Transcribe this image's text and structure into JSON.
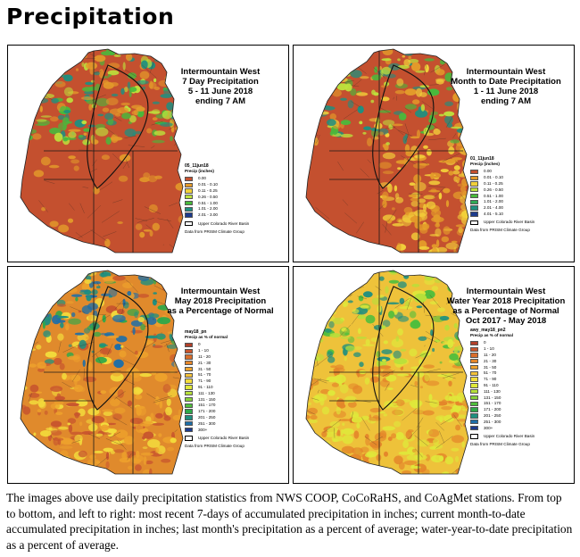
{
  "page": {
    "title": "Precipitation",
    "caption": "The images above use daily precipitation statistics from NWS COOP, CoCoRaHS, and CoAgMet stations. From top to bottom, and left to right: most recent 7-days of accumulated precipitation in inches; current month-to-date accumulated precipitation in inches; last month's precipitation as a percent of average; water-year-to-date precipitation as a percent of average."
  },
  "panels": [
    {
      "title_lines": [
        "Intermountain West",
        "7 Day Precipitation",
        "5 - 11 June 2018",
        "ending 7 AM"
      ],
      "legend": {
        "heading": "05_11jun18",
        "subheading": "Precip (inches)",
        "items": [
          {
            "label": "0.00",
            "color": "#c4502f"
          },
          {
            "label": "0.01 - 0.10",
            "color": "#e39a2a"
          },
          {
            "label": "0.11 - 0.25",
            "color": "#f2d03a"
          },
          {
            "label": "0.26 - 0.50",
            "color": "#bde23c"
          },
          {
            "label": "0.51 - 1.00",
            "color": "#49b93c"
          },
          {
            "label": "1.01 - 2.00",
            "color": "#1f8f7f"
          },
          {
            "label": "2.01 - 3.00",
            "color": "#1d3b8c"
          }
        ],
        "basin_label": "Upper Colorado River Basin",
        "credit": "Data from PRISM Climate Group"
      },
      "map_palette": {
        "base": "#c4502f",
        "patches": [
          "#e39a2a",
          "#bde23c",
          "#49b93c",
          "#1f8f7f"
        ]
      }
    },
    {
      "title_lines": [
        "Intermountain West",
        "Month to Date Precipitation",
        "1 - 11 June 2018",
        "ending 7 AM"
      ],
      "legend": {
        "heading": "01_11jun18",
        "subheading": "Precip (inches)",
        "items": [
          {
            "label": "0.00",
            "color": "#c4502f"
          },
          {
            "label": "0.01 - 0.10",
            "color": "#e39a2a"
          },
          {
            "label": "0.11 - 0.25",
            "color": "#f2d03a"
          },
          {
            "label": "0.26 - 0.50",
            "color": "#bde23c"
          },
          {
            "label": "0.51 - 1.00",
            "color": "#49b93c"
          },
          {
            "label": "1.01 - 2.00",
            "color": "#2faa55"
          },
          {
            "label": "2.01 - 4.00",
            "color": "#1f8f7f"
          },
          {
            "label": "4.01 - 5.10",
            "color": "#1d3b8c"
          }
        ],
        "basin_label": "Upper Colorado River Basin",
        "credit": "Data from PRISM Climate Group"
      },
      "map_palette": {
        "base": "#c4502f",
        "patches": [
          "#e39a2a",
          "#f2d03a",
          "#bde23c",
          "#49b93c",
          "#1f8f7f"
        ]
      }
    },
    {
      "title_lines": [
        "Intermountain West",
        "May 2018 Precipitation",
        "as a Percentage of Normal"
      ],
      "legend": {
        "heading": "may18_pn",
        "subheading": "Precip as % of normal",
        "items": [
          {
            "label": "0",
            "color": "#b2402a"
          },
          {
            "label": "1 - 10",
            "color": "#c8552e"
          },
          {
            "label": "11 - 20",
            "color": "#d86e2c"
          },
          {
            "label": "21 - 30",
            "color": "#e4862a"
          },
          {
            "label": "31 - 50",
            "color": "#eda12c"
          },
          {
            "label": "51 - 70",
            "color": "#f3c13a"
          },
          {
            "label": "71 - 90",
            "color": "#f3dd3c"
          },
          {
            "label": "91 - 110",
            "color": "#dfe83a"
          },
          {
            "label": "111 - 130",
            "color": "#b6e03a"
          },
          {
            "label": "131 - 150",
            "color": "#86d13a"
          },
          {
            "label": "151 - 170",
            "color": "#4fbe3c"
          },
          {
            "label": "171 - 200",
            "color": "#2fa84a"
          },
          {
            "label": "201 - 250",
            "color": "#1f8f7f"
          },
          {
            "label": "251 - 300",
            "color": "#1d6ea8"
          },
          {
            "label": "300+",
            "color": "#1d3b8c"
          }
        ],
        "basin_label": "Upper Colorado River Basin",
        "credit": "Data from PRISM Climate Group"
      },
      "map_palette": {
        "base": "#e08a2c",
        "patches": [
          "#c8552e",
          "#eda12c",
          "#f3dd3c",
          "#2fa84a",
          "#1f8f7f",
          "#1d6ea8"
        ]
      }
    },
    {
      "title_lines": [
        "Intermountain West",
        "Water Year 2018 Precipitation",
        "as a Percentage of Normal",
        "Oct 2017 - May 2018"
      ],
      "legend": {
        "heading": "awy_may18_pn2",
        "subheading": "Precip as % of normal",
        "items": [
          {
            "label": "0",
            "color": "#b2402a"
          },
          {
            "label": "1 - 10",
            "color": "#c8552e"
          },
          {
            "label": "11 - 20",
            "color": "#d86e2c"
          },
          {
            "label": "21 - 30",
            "color": "#e4862a"
          },
          {
            "label": "31 - 50",
            "color": "#eda12c"
          },
          {
            "label": "51 - 70",
            "color": "#f3c13a"
          },
          {
            "label": "71 - 90",
            "color": "#f3dd3c"
          },
          {
            "label": "91 - 110",
            "color": "#dfe83a"
          },
          {
            "label": "111 - 130",
            "color": "#b6e03a"
          },
          {
            "label": "131 - 150",
            "color": "#86d13a"
          },
          {
            "label": "151 - 170",
            "color": "#4fbe3c"
          },
          {
            "label": "171 - 200",
            "color": "#2fa84a"
          },
          {
            "label": "201 - 250",
            "color": "#1f8f7f"
          },
          {
            "label": "251 - 300",
            "color": "#1d6ea8"
          },
          {
            "label": "300+",
            "color": "#1d3b8c"
          }
        ],
        "basin_label": "Upper Colorado River Basin",
        "credit": "Data from PRISM Climate Group"
      },
      "map_palette": {
        "base": "#eec23a",
        "patches": [
          "#e4862a",
          "#dfe83a",
          "#b6e03a",
          "#4fbe3c",
          "#1f8f7f"
        ]
      }
    }
  ]
}
